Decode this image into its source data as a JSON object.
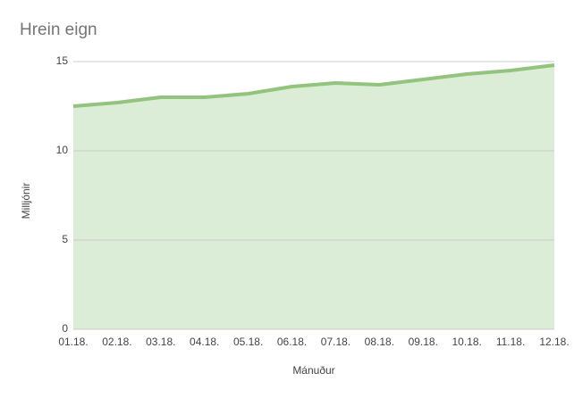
{
  "chart_data": {
    "type": "area",
    "title": "Hrein eign",
    "x_label": "Mánuður",
    "y_label": "Milljónir",
    "categories": [
      "01.18.",
      "02.18.",
      "03.18.",
      "04.18.",
      "05.18.",
      "06.18.",
      "07.18.",
      "08.18.",
      "09.18.",
      "10.18.",
      "11.18.",
      "12.18."
    ],
    "values": [
      12.5,
      12.7,
      13.0,
      13.0,
      13.2,
      13.6,
      13.8,
      13.7,
      14.0,
      14.3,
      14.5,
      14.8
    ],
    "color": "#93c47d",
    "fill_color": "#dcedd7",
    "ylim": [
      0,
      15
    ],
    "yticks": [
      0,
      5,
      10,
      15
    ],
    "grid": true
  }
}
